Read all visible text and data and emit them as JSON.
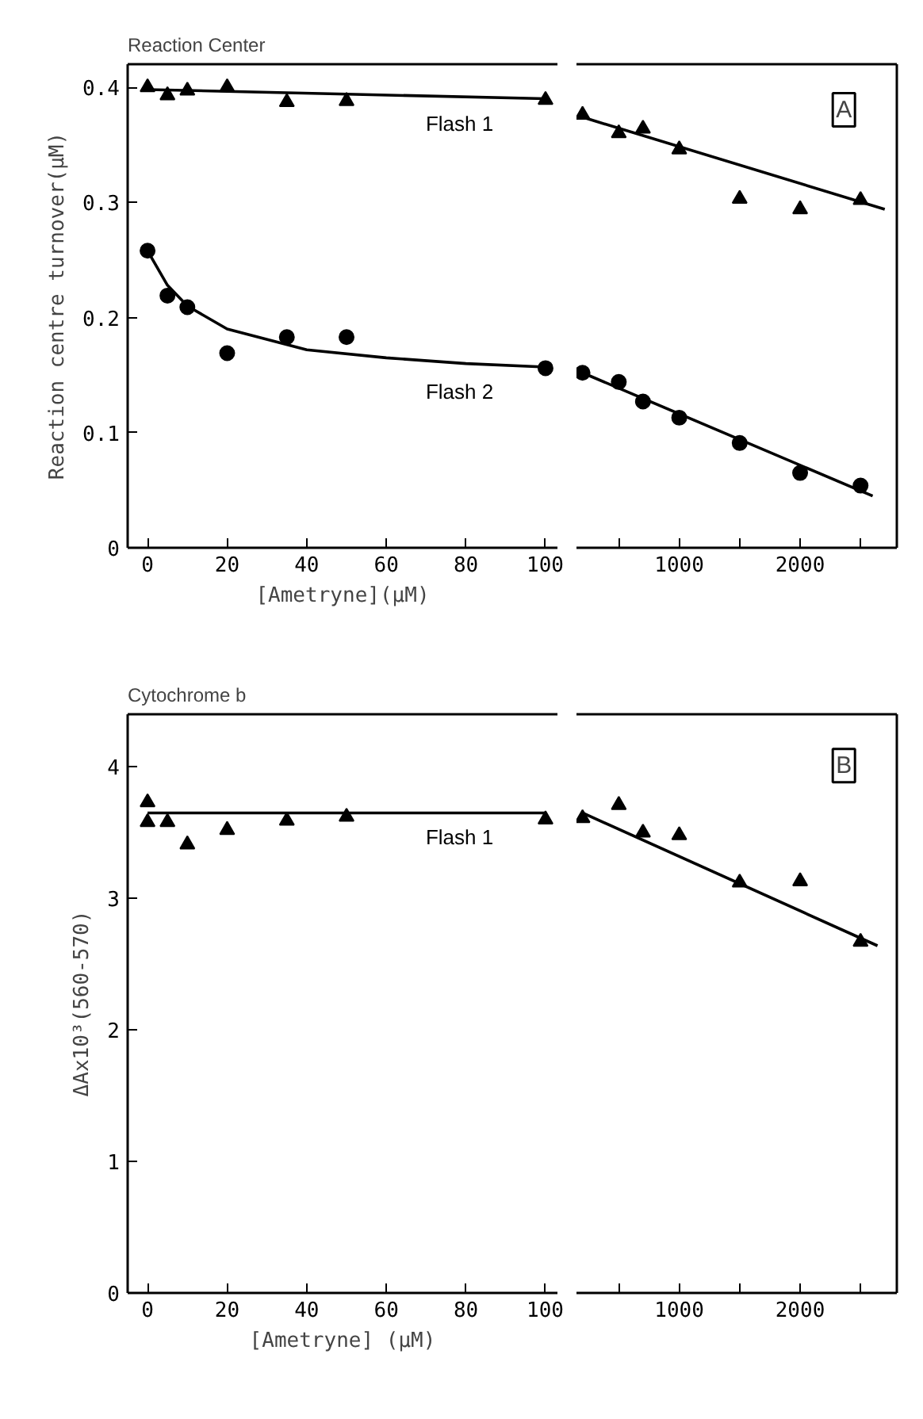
{
  "chart_data": [
    {
      "type": "scatter",
      "title": "Reaction Center",
      "ylabel": "Reaction centre turnover(μM)",
      "xlabel": "[Ametryne](μM)",
      "xlim": [
        -5,
        103
      ],
      "ylim": [
        0,
        0.42
      ],
      "xticks": [
        0,
        20,
        40,
        60,
        80,
        100
      ],
      "yticks": [
        0,
        0.1,
        0.2,
        0.3,
        0.4
      ],
      "series": [
        {
          "marker": "triangle",
          "color": "#000000",
          "x": [
            0,
            5,
            10,
            20,
            35,
            50,
            100
          ],
          "values": [
            0.4,
            0.393,
            0.397,
            0.4,
            0.387,
            0.388,
            0.389
          ]
        },
        {
          "type": "line",
          "line_style": "solid",
          "color": "#000000",
          "x": [
            0,
            50,
            100
          ],
          "values": [
            0.398,
            0.394,
            0.39
          ]
        },
        {
          "marker": "circle",
          "color": "#000000",
          "x": [
            0,
            5,
            10,
            20,
            35,
            50,
            100
          ],
          "values": [
            0.258,
            0.219,
            0.209,
            0.169,
            0.183,
            0.183,
            0.156
          ]
        },
        {
          "type": "line",
          "line_style": "solid",
          "color": "#000000",
          "x": [
            0,
            5,
            10,
            20,
            40,
            60,
            80,
            100
          ],
          "values": [
            0.258,
            0.228,
            0.21,
            0.19,
            0.172,
            0.165,
            0.16,
            0.157
          ]
        }
      ],
      "annotations": [
        "Flash 1",
        "Flash 2"
      ]
    },
    {
      "type": "scatter",
      "xlim": [
        150,
        2800
      ],
      "ylim": [
        0,
        0.42
      ],
      "xticks": [
        {
          "value": 500,
          "label": null
        },
        1000,
        {
          "value": 1500,
          "label": null
        },
        2000,
        {
          "value": 2500,
          "label": null
        }
      ],
      "tick_labels": "x",
      "series": [
        {
          "marker": "triangle",
          "color": "#000000",
          "x": [
            200,
            500,
            700,
            1000,
            1500,
            2000,
            2500
          ],
          "values": [
            0.376,
            0.36,
            0.364,
            0.346,
            0.303,
            0.294,
            0.302
          ]
        },
        {
          "type": "line",
          "line_style": "solid",
          "color": "#000000",
          "x": [
            200,
            2700
          ],
          "values": [
            0.374,
            0.294
          ]
        },
        {
          "marker": "circle",
          "color": "#000000",
          "x": [
            200,
            500,
            700,
            1000,
            1500,
            2000,
            2500
          ],
          "values": [
            0.152,
            0.144,
            0.127,
            0.113,
            0.091,
            0.065,
            0.054
          ]
        },
        {
          "type": "line",
          "line_style": "solid",
          "color": "#000000",
          "x": [
            200,
            2600
          ],
          "values": [
            0.152,
            0.045
          ]
        }
      ],
      "annotations": [
        "A"
      ]
    },
    {
      "type": "scatter",
      "title": "Cytochrome b",
      "ylabel": "ΔAx10³(560-570)",
      "xlabel": "[Ametryne] (μM)",
      "xlim": [
        -5,
        103
      ],
      "ylim": [
        0,
        4.4
      ],
      "xticks": [
        0,
        20,
        40,
        60,
        80,
        100
      ],
      "yticks": [
        0,
        1,
        2,
        3,
        4
      ],
      "series": [
        {
          "marker": "triangle",
          "color": "#000000",
          "x": [
            0,
            0,
            5,
            10,
            20,
            35,
            50,
            100
          ],
          "values": [
            3.73,
            3.58,
            3.58,
            3.41,
            3.52,
            3.59,
            3.62,
            3.6
          ]
        },
        {
          "type": "line",
          "line_style": "solid",
          "color": "#000000",
          "x": [
            0,
            100
          ],
          "values": [
            3.65,
            3.65
          ]
        }
      ],
      "annotations": [
        "Flash 1"
      ]
    },
    {
      "type": "scatter",
      "xlim": [
        150,
        2800
      ],
      "ylim": [
        0,
        4.4
      ],
      "xticks": [
        {
          "value": 500,
          "label": null
        },
        1000,
        {
          "value": 1500,
          "label": null
        },
        2000,
        {
          "value": 2500,
          "label": null
        }
      ],
      "tick_labels": "x",
      "series": [
        {
          "marker": "triangle",
          "color": "#000000",
          "x": [
            200,
            500,
            700,
            1000,
            1500,
            2000,
            2500
          ],
          "values": [
            3.61,
            3.71,
            3.5,
            3.48,
            3.12,
            3.13,
            2.67
          ]
        },
        {
          "type": "line",
          "line_style": "solid",
          "color": "#000000",
          "x": [
            200,
            2640
          ],
          "values": [
            3.65,
            2.64
          ]
        }
      ],
      "annotations": [
        "B"
      ]
    }
  ]
}
